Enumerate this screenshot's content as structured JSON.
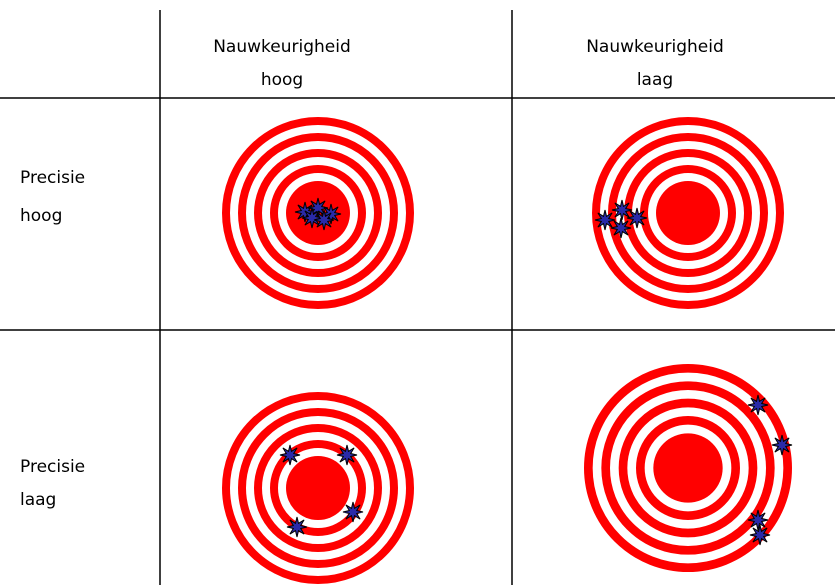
{
  "header": {
    "columns": [
      [
        "Nauwkeurigheid",
        "hoog"
      ],
      [
        "Nauwkeurigheid",
        "laag"
      ]
    ]
  },
  "rows": [
    [
      "Precisie",
      "hoog"
    ],
    [
      "Precisie",
      "laag"
    ]
  ]
}
